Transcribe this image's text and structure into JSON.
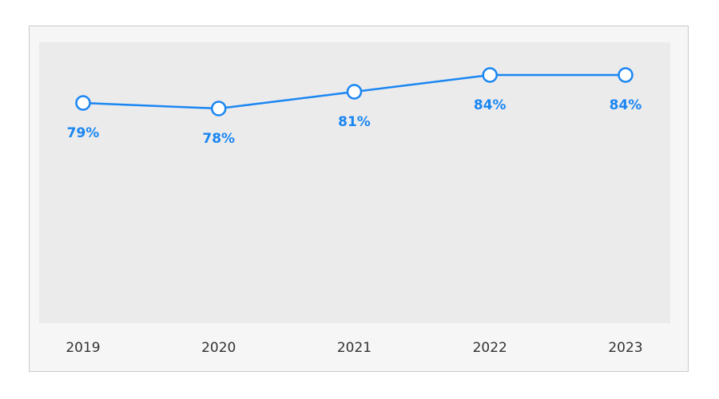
{
  "chart_data": {
    "type": "line",
    "categories": [
      "2019",
      "2020",
      "2021",
      "2022",
      "2023"
    ],
    "series": [
      {
        "values": [
          79,
          78,
          81,
          84,
          84
        ]
      }
    ],
    "data_labels": [
      "79%",
      "78%",
      "81%",
      "84%",
      "84%"
    ],
    "ylim": [
      40,
      90
    ],
    "grid": false,
    "legend": "none",
    "title": "",
    "xlabel": "",
    "ylabel": ""
  },
  "colors": {
    "line": "#1a86f2",
    "label": "#1a86f2",
    "marker_fill": "#ffffff",
    "plot_background": "#ebebec",
    "frame_background": "#f6f6f6"
  }
}
